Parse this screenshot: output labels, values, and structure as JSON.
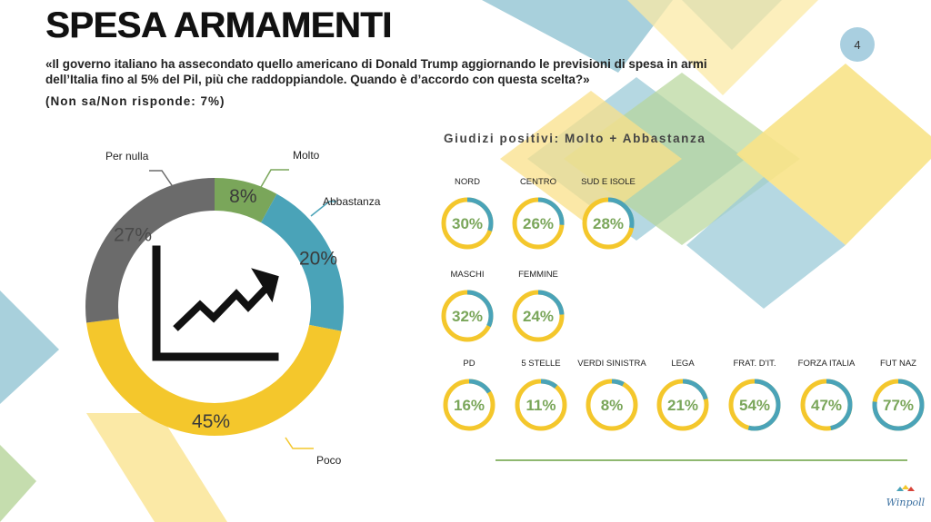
{
  "title": "SPESA ARMAMENTI",
  "page_number": "4",
  "question_line1": "«Il governo italiano ha assecondato quello americano di Donald Trump aggiornando le previsioni di spesa in armi",
  "question_line2": "dell’Italia fino al 5% del Pil, più che raddoppiandole. Quando è d’accordo con questa scelta?»",
  "non_sa": "(Non sa/Non risponde: 7%)",
  "section_title": "Giudizi positivi: Molto + Abbastanza",
  "logo_text": "Winpoll",
  "colors": {
    "molto": "#7aa65a",
    "abbastanza": "#4aa3b8",
    "poco": "#f4c72c",
    "per_nulla": "#6b6b6b",
    "gauge_track": "#f4c72c",
    "gauge_fill": "#4aa3b8",
    "gauge_text": "#7aa65a"
  },
  "chart_data": [
    {
      "type": "pie",
      "donut": true,
      "categories": [
        "Molto",
        "Abbastanza",
        "Poco",
        "Per nulla"
      ],
      "values": [
        8,
        20,
        45,
        27
      ],
      "labels": [
        "8%",
        "20%",
        "45%",
        "27%"
      ],
      "center_icon": "rising-chart-icon"
    },
    {
      "type": "bar",
      "title": "Giudizi positivi: Molto + Abbastanza",
      "groups": [
        {
          "items": [
            {
              "label": "NORD",
              "value": 30,
              "text": "30%"
            },
            {
              "label": "CENTRO",
              "value": 26,
              "text": "26%"
            },
            {
              "label": "SUD E ISOLE",
              "value": 28,
              "text": "28%"
            }
          ]
        },
        {
          "items": [
            {
              "label": "MASCHI",
              "value": 32,
              "text": "32%"
            },
            {
              "label": "FEMMINE",
              "value": 24,
              "text": "24%"
            }
          ]
        },
        {
          "items": [
            {
              "label": "PD",
              "value": 16,
              "text": "16%"
            },
            {
              "label": "5 STELLE",
              "value": 11,
              "text": "11%"
            },
            {
              "label": "VERDI SINISTRA",
              "value": 8,
              "text": "8%"
            },
            {
              "label": "LEGA",
              "value": 21,
              "text": "21%"
            },
            {
              "label": "FRAT. D'IT.",
              "value": 54,
              "text": "54%"
            },
            {
              "label": "FORZA ITALIA",
              "value": 47,
              "text": "47%"
            },
            {
              "label": "FUT NAZ",
              "value": 77,
              "text": "77%"
            }
          ]
        }
      ]
    }
  ]
}
